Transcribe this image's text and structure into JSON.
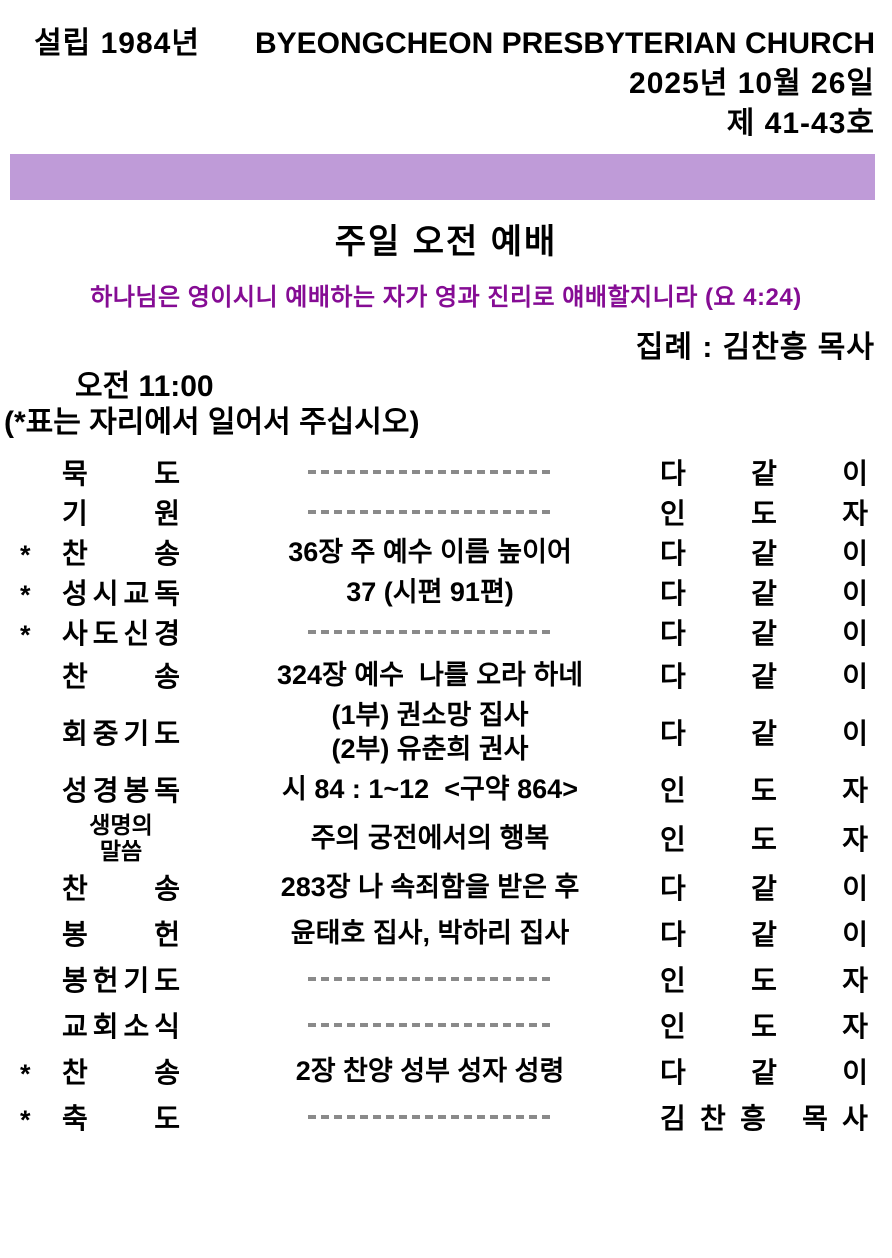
{
  "header": {
    "founded": "설립 1984년",
    "church_name": "BYEONGCHEON PRESBYTERIAN CHURCH",
    "date": "2025년 10월 26일",
    "issue_no": "제 41-43호"
  },
  "service": {
    "title": "주일 오전 예배",
    "verse": "하나님은 영이시니 예배하는 자가 영과 진리로 얘배할지니라 (요 4:24)",
    "officiant": "집례 : 김찬흥 목사",
    "time": "오전 11:00",
    "stand_note": "(*표는 자리에서 일어서 주십시오)"
  },
  "colors": {
    "band_purple": "#bf9bd8",
    "verse_purple": "#850c94",
    "dash_gray": "#8a8a8a"
  },
  "worship_order": {
    "rows": [
      {
        "star": "",
        "label": "묵도",
        "dashes": true,
        "right": "다같이"
      },
      {
        "star": "",
        "label": "기원",
        "dashes": true,
        "right": "인도자"
      },
      {
        "star": "*",
        "label": "찬송",
        "content": "36장 주 예수 이름 높이어",
        "right": "다같이"
      },
      {
        "star": "*",
        "label": "성시교독",
        "content": "37 (시편 91편)",
        "right": "다같이"
      },
      {
        "star": "*",
        "label": "사도신경",
        "dashes": true,
        "right": "다같이"
      },
      {
        "star": "",
        "label": "찬송",
        "content": "324장 예수  나를 오라 하네",
        "right": "다같이"
      },
      {
        "star": "",
        "label": "회중기도",
        "content_lines": [
          "(1부) 권소망 집사",
          "(2부) 유춘희 권사"
        ],
        "right": "다같이"
      },
      {
        "star": "",
        "label": "성경봉독",
        "content": "시 84 : 1~12  <구약 864>",
        "right": "인도자"
      },
      {
        "star": "",
        "label_lines": [
          "생명의",
          "말씀"
        ],
        "content": "주의 궁전에서의 행복",
        "right": "인도자"
      },
      {
        "star": "",
        "label": "찬송",
        "content": "283장 나 속죄함을 받은 후",
        "right": "다같이"
      },
      {
        "star": "",
        "label": "봉헌",
        "content": "윤태호 집사, 박하리 집사",
        "right": "다같이"
      },
      {
        "star": "",
        "label": "봉헌기도",
        "dashes": true,
        "right": "인도자"
      },
      {
        "star": "",
        "label": "교회소식",
        "dashes": true,
        "right": "인도자"
      },
      {
        "star": "*",
        "label": "찬송",
        "content": "2장 찬양 성부 성자 성령",
        "right": "다같이"
      },
      {
        "star": "*",
        "label": "축도",
        "dashes": true,
        "right": "김찬흥 목사"
      }
    ]
  }
}
